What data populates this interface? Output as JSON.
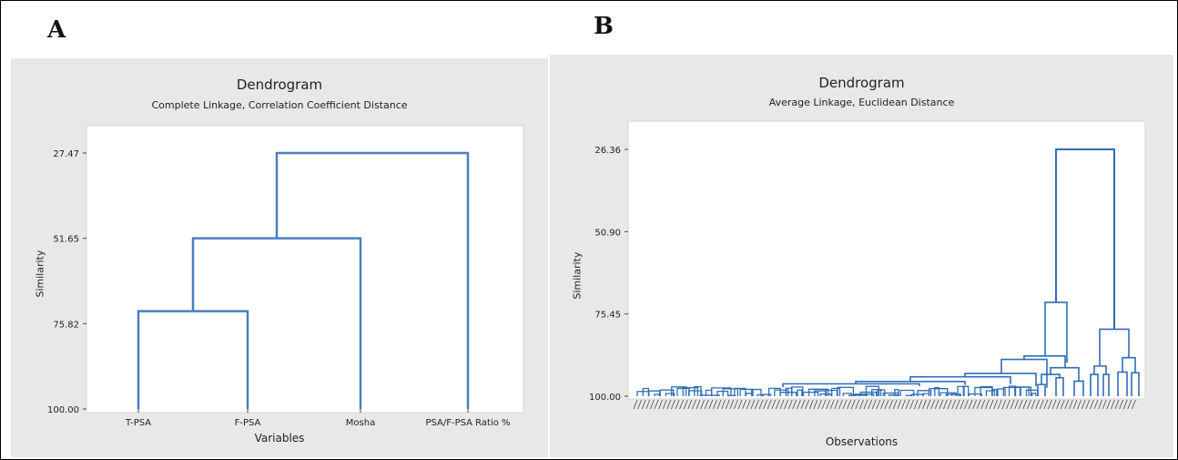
{
  "panels": {
    "a_letter": "A",
    "b_letter": "B"
  },
  "chart_data": [
    {
      "type": "dendrogram",
      "title": "Dendrogram",
      "subtitle": "Complete Linkage, Correlation Coefficient Distance",
      "xlabel": "Variables",
      "ylabel": "Similarity",
      "yticks": [
        "27.47",
        "51.65",
        "75.82",
        "100.00"
      ],
      "ylim": [
        100.0,
        27.47
      ],
      "leaves": [
        "T-PSA",
        "F-PSA",
        "Mosha",
        "PSA/F-PSA Ratio %"
      ],
      "merges": [
        {
          "left": 0,
          "right": 1,
          "similarity": 72.3
        },
        {
          "left": "m0",
          "right": 2,
          "similarity": 51.65
        },
        {
          "left": "m1",
          "right": 3,
          "similarity": 27.47
        }
      ],
      "color": "#4a7fc1"
    },
    {
      "type": "dendrogram",
      "title": "Dendrogram",
      "subtitle": "Average Linkage, Euclidean Distance",
      "xlabel": "Observations",
      "ylabel": "Similarity",
      "yticks": [
        "26.36",
        "50.90",
        "75.45",
        "100.00"
      ],
      "ylim": [
        100.0,
        26.36
      ],
      "major_merges": [
        {
          "name": "top",
          "similarity": 26.36
        },
        {
          "name": "right-branch",
          "similarity": 80.0
        },
        {
          "name": "left-branch",
          "similarity": 72.0
        }
      ],
      "color": "#2f6db5"
    }
  ]
}
